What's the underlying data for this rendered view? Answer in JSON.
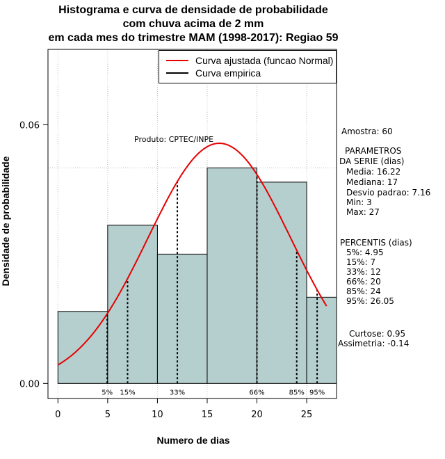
{
  "title_lines": [
    "Histograma e curva de densidade de probabilidade",
    "com chuva acima de 2 mm",
    "em cada mes do trimestre MAM (1998-2017): Regiao 59"
  ],
  "product_label": "Produto: CPTEC/INPE",
  "legend": {
    "fitted": "Curva ajustada (funcao Normal)",
    "empirical": "Curva empirica"
  },
  "colors": {
    "bar_fill": "#b5cfce",
    "fitted_curve": "#e60000",
    "empirical_curve": "#000000",
    "grid": "#bdbdbd"
  },
  "stats": {
    "amostra": "Amostra: 60",
    "params_title_1": "PARAMETROS",
    "params_title_2": "DA SERIE (dias)",
    "media": "Media: 16.22",
    "mediana": "Mediana: 17",
    "desvio": "Desvio padrao: 7.16",
    "min": "Min: 3",
    "max": "Max: 27",
    "percentis_title": "PERCENTIS (dias)",
    "p5": "5%: 4.95",
    "p15": "15%: 7",
    "p33": "33%: 12",
    "p66": "66%: 20",
    "p85": "85%: 24",
    "p95": "95%: 26.05",
    "curtose": "Curtose: 0.95",
    "assimetria": "Assimetria: -0.14"
  },
  "chart_data": {
    "type": "bar",
    "subtype": "histogram_with_density",
    "xlabel": "Numero de dias",
    "ylabel": "Densidade de probabilidade",
    "xlim": [
      -1,
      28
    ],
    "ylim": [
      -0.0035,
      0.0775
    ],
    "x_ticks": [
      0,
      5,
      10,
      15,
      20,
      25
    ],
    "x_tick_labels": [
      "0",
      "5",
      "10",
      "15",
      "20",
      "25"
    ],
    "y_ticks": [
      0.0,
      0.06
    ],
    "y_tick_labels": [
      "0.00",
      "0.06"
    ],
    "bins": [
      {
        "start": 0,
        "end": 5,
        "density": 0.0167
      },
      {
        "start": 5,
        "end": 10,
        "density": 0.0367
      },
      {
        "start": 10,
        "end": 15,
        "density": 0.03
      },
      {
        "start": 15,
        "end": 20,
        "density": 0.05
      },
      {
        "start": 20,
        "end": 25,
        "density": 0.0467
      },
      {
        "start": 25,
        "end": 28,
        "density": 0.02
      }
    ],
    "grid": {
      "x": [
        0,
        5,
        10,
        15,
        20,
        25
      ],
      "y": [
        0.05
      ]
    },
    "fitted_normal": {
      "mean": 16.22,
      "sd": 7.16,
      "x_range": [
        0,
        27
      ]
    },
    "percentiles": [
      {
        "label": "5%",
        "value": 4.95
      },
      {
        "label": "15%",
        "value": 7
      },
      {
        "label": "33%",
        "value": 12
      },
      {
        "label": "66%",
        "value": 20
      },
      {
        "label": "85%",
        "value": 24
      },
      {
        "label": "95%",
        "value": 26.05
      }
    ]
  }
}
